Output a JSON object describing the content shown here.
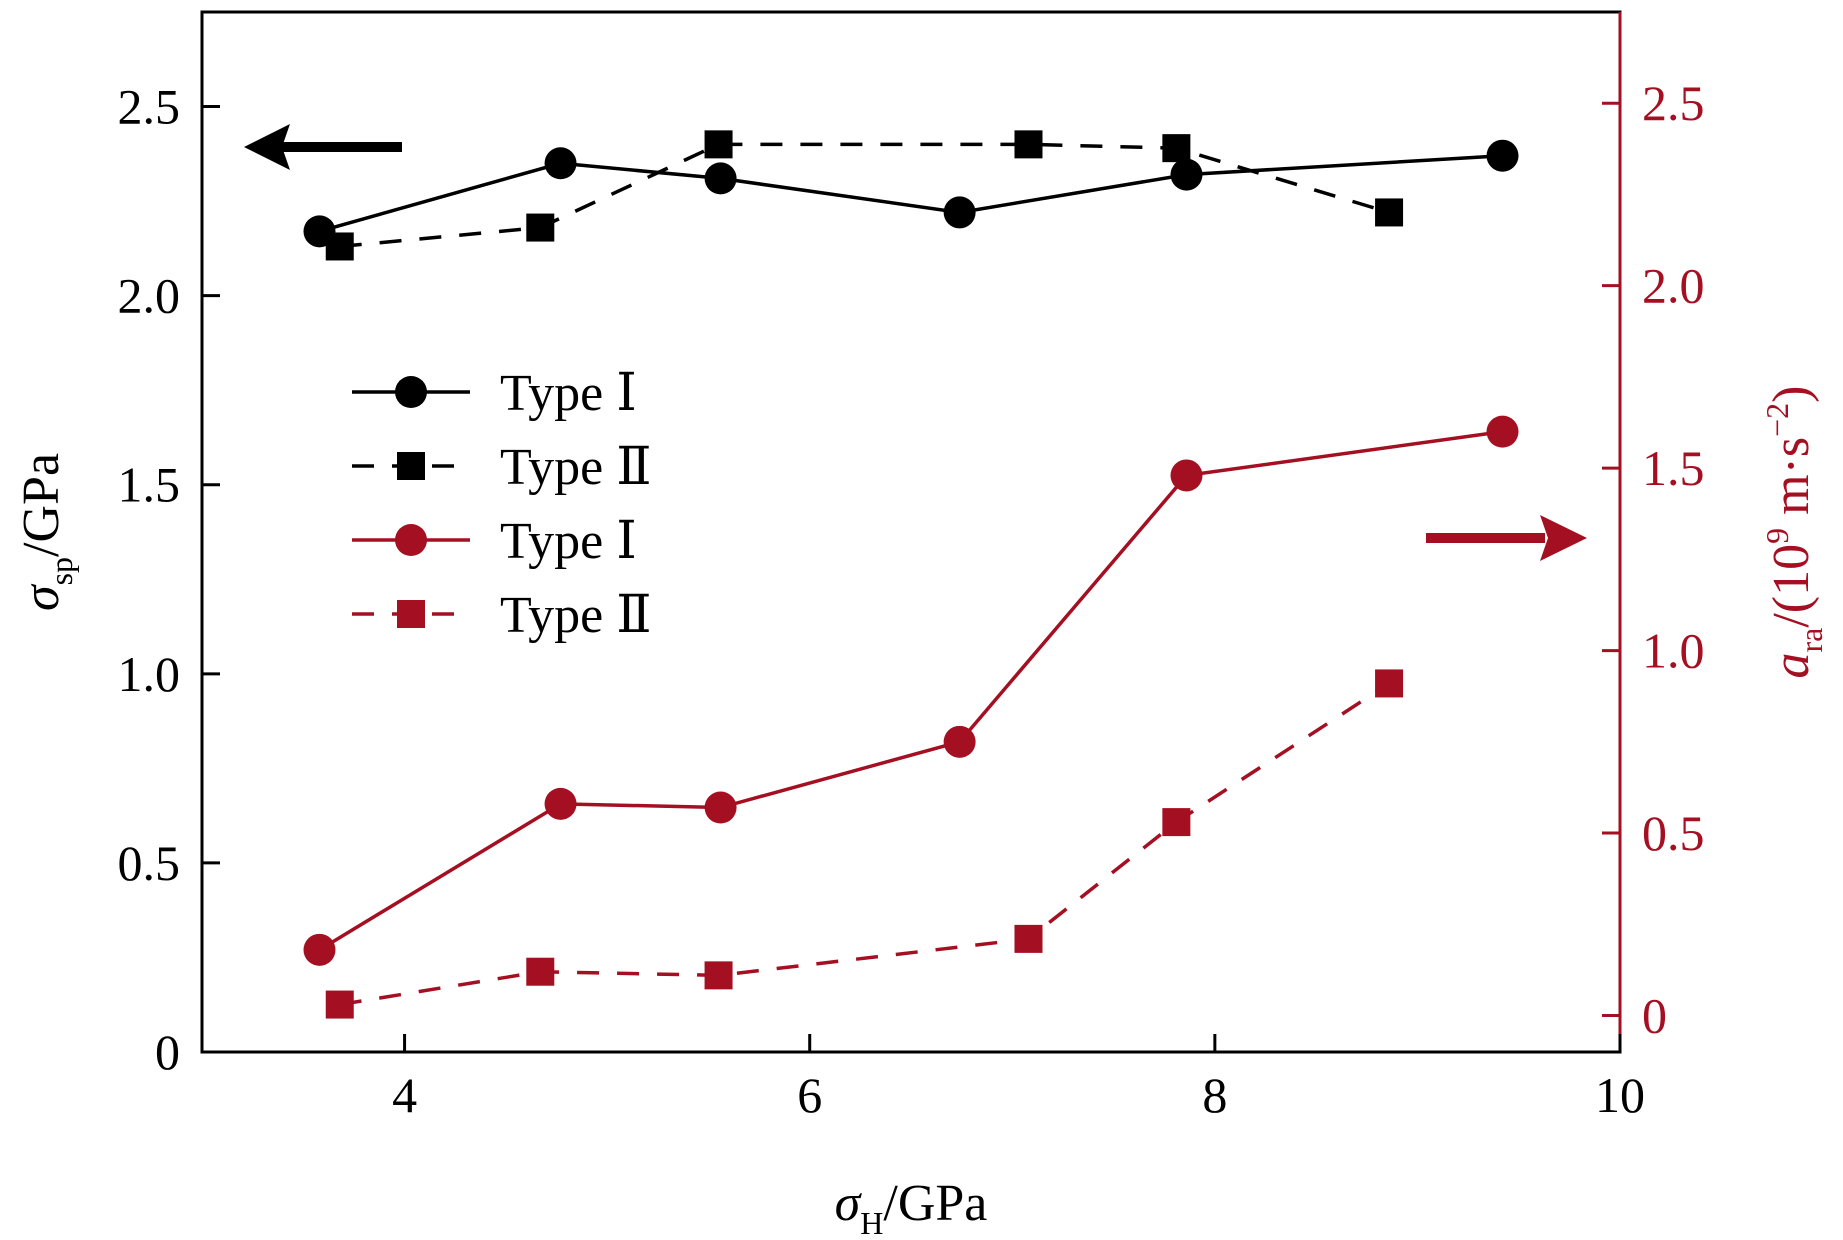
{
  "chart_data": {
    "type": "line",
    "xlabel": {
      "sym": "σ",
      "sub": "H",
      "unit": "/GPa"
    },
    "ylabel_left": {
      "sym": "σ",
      "sub": "sp",
      "unit": "/GPa"
    },
    "ylabel_right": {
      "sym": "a",
      "sub": "ra",
      "unit_prefix": "/(10",
      "unit_exp": "9",
      "unit_mid": " m·s",
      "unit_exp2": "−2",
      "unit_suffix": ")"
    },
    "xlim": [
      3,
      10
    ],
    "ylim_left": [
      0,
      2.75
    ],
    "ylim_right": [
      -0.1,
      2.75
    ],
    "x_ticks": [
      "4",
      "6",
      "8",
      "10"
    ],
    "y_left_ticks": [
      "0",
      "0.5",
      "1.0",
      "1.5",
      "2.0",
      "2.5"
    ],
    "y_right_ticks": [
      "0",
      "0.5",
      "1.0",
      "1.5",
      "2.0",
      "2.5"
    ],
    "series": [
      {
        "name": "Type Ⅰ",
        "axis": "left",
        "color": "#000000",
        "marker": "circle",
        "dash": false,
        "x": [
          3.58,
          4.77,
          5.56,
          6.74,
          7.86,
          9.42
        ],
        "y": [
          2.17,
          2.35,
          2.31,
          2.22,
          2.32,
          2.37
        ]
      },
      {
        "name": "Type Ⅱ",
        "axis": "left",
        "color": "#000000",
        "marker": "square",
        "dash": true,
        "x": [
          3.68,
          4.67,
          5.55,
          7.08,
          7.81,
          8.86
        ],
        "y": [
          2.13,
          2.18,
          2.4,
          2.4,
          2.39,
          2.22
        ]
      },
      {
        "name": "Type Ⅰ",
        "axis": "right",
        "color": "#a50f22",
        "marker": "circle",
        "dash": false,
        "x": [
          3.58,
          4.77,
          5.56,
          6.74,
          7.86,
          9.42
        ],
        "y": [
          0.18,
          0.58,
          0.57,
          0.75,
          1.48,
          1.6
        ]
      },
      {
        "name": "Type Ⅱ",
        "axis": "right",
        "color": "#a50f22",
        "marker": "square",
        "dash": true,
        "x": [
          3.68,
          4.67,
          5.55,
          7.08,
          7.81,
          8.86
        ],
        "y": [
          0.03,
          0.12,
          0.11,
          0.21,
          0.53,
          0.91
        ]
      }
    ]
  }
}
